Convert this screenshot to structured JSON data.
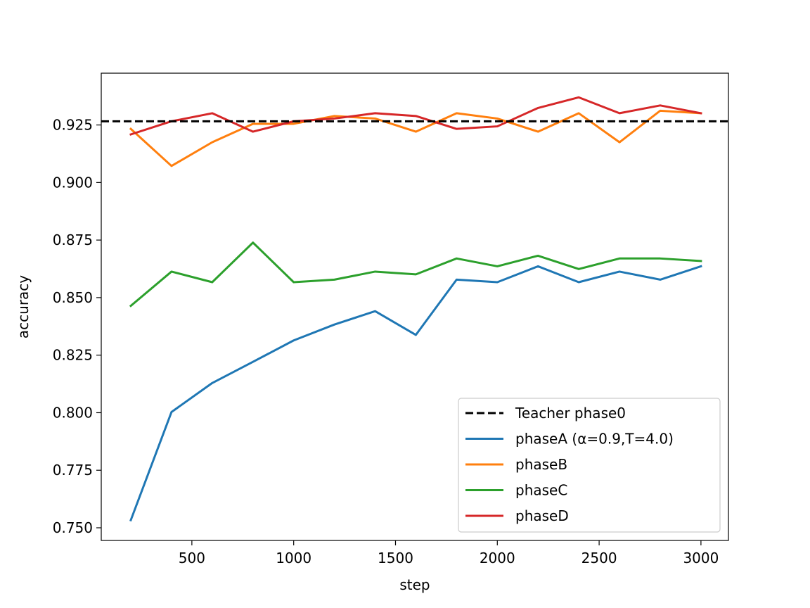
{
  "chart_data": {
    "type": "line",
    "title": "",
    "xlabel": "step",
    "ylabel": "accuracy",
    "xlim": [
      55,
      3135
    ],
    "ylim": [
      0.7445,
      0.9475
    ],
    "xticks": [
      500,
      1000,
      1500,
      2000,
      2500,
      3000
    ],
    "yticks": [
      0.75,
      0.775,
      0.8,
      0.825,
      0.85,
      0.875,
      0.9,
      0.925
    ],
    "ytick_labels": [
      "0.750",
      "0.775",
      "0.800",
      "0.825",
      "0.850",
      "0.875",
      "0.900",
      "0.925"
    ],
    "grid": false,
    "legend_position": "bottom-right",
    "reference_line": {
      "name": "Teacher phase0",
      "value": 0.9266,
      "color": "#000000",
      "style": "dashed"
    },
    "x": [
      200,
      400,
      600,
      800,
      1000,
      1200,
      1400,
      1600,
      1800,
      2000,
      2200,
      2400,
      2600,
      2800,
      3000
    ],
    "series": [
      {
        "name": "phaseA (α=0.9,T=4.0)",
        "color": "#1f77b4",
        "values": [
          0.7533,
          0.8003,
          0.8129,
          0.8221,
          0.8314,
          0.8383,
          0.8441,
          0.8338,
          0.8578,
          0.8567,
          0.8636,
          0.8567,
          0.8613,
          0.8578,
          0.8636
        ]
      },
      {
        "name": "phaseB",
        "color": "#ff7f0e",
        "values": [
          0.9233,
          0.9072,
          0.9175,
          0.9255,
          0.9255,
          0.9289,
          0.9278,
          0.9221,
          0.9301,
          0.9278,
          0.9221,
          0.9301,
          0.9175,
          0.9312,
          0.9301
        ]
      },
      {
        "name": "phaseC",
        "color": "#2ca02c",
        "values": [
          0.8464,
          0.8613,
          0.8567,
          0.8739,
          0.8567,
          0.8578,
          0.8613,
          0.8601,
          0.867,
          0.8636,
          0.8682,
          0.8624,
          0.867,
          0.867,
          0.8659
        ]
      },
      {
        "name": "phaseD",
        "color": "#d62728",
        "values": [
          0.9209,
          0.9266,
          0.9301,
          0.9221,
          0.9266,
          0.9278,
          0.9301,
          0.9289,
          0.9233,
          0.9244,
          0.9324,
          0.937,
          0.9301,
          0.9335,
          0.9301
        ]
      }
    ]
  }
}
